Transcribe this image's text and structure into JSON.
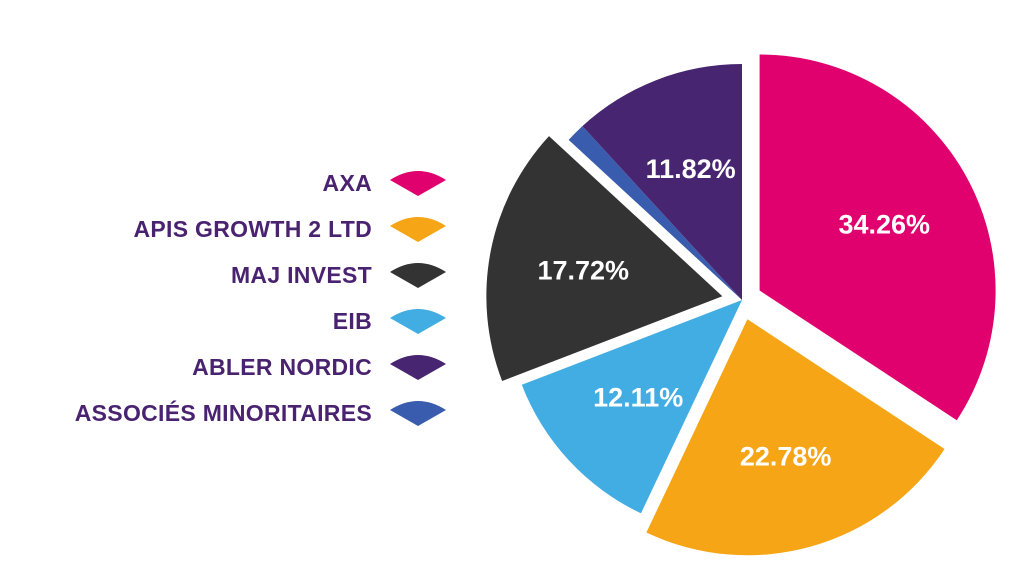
{
  "chart_data": {
    "type": "pie",
    "slices": [
      {
        "name": "AXA",
        "value": 34.26,
        "label": "34.26%",
        "color": "#e0006e",
        "exploded": true
      },
      {
        "name": "APIS GROWTH 2 LTD",
        "value": 22.78,
        "label": "22.78%",
        "color": "#f5a516",
        "exploded": true
      },
      {
        "name": "EIB",
        "value": 12.11,
        "label": "12.11%",
        "color": "#42ade2",
        "exploded": false
      },
      {
        "name": "MAJ INVEST",
        "value": 17.72,
        "label": "17.72%",
        "color": "#333333",
        "exploded": true
      },
      {
        "name": "ASSOCIÉS MINORITAIRES",
        "value": 1.31,
        "label": "",
        "color": "#3a5cae",
        "exploded": false
      },
      {
        "name": "ABLER NORDIC",
        "value": 11.82,
        "label": "11.82%",
        "color": "#472570",
        "exploded": false
      }
    ],
    "legend": [
      {
        "name": "AXA",
        "color": "#e0006e"
      },
      {
        "name": "APIS GROWTH 2 LTD",
        "color": "#f5a516"
      },
      {
        "name": "MAJ INVEST",
        "color": "#333333"
      },
      {
        "name": "EIB",
        "color": "#42ade2"
      },
      {
        "name": "ABLER NORDIC",
        "color": "#472570"
      },
      {
        "name": "ASSOCIÉS MINORITAIRES",
        "color": "#3a5cae"
      }
    ],
    "legend_position": "left",
    "title": ""
  }
}
